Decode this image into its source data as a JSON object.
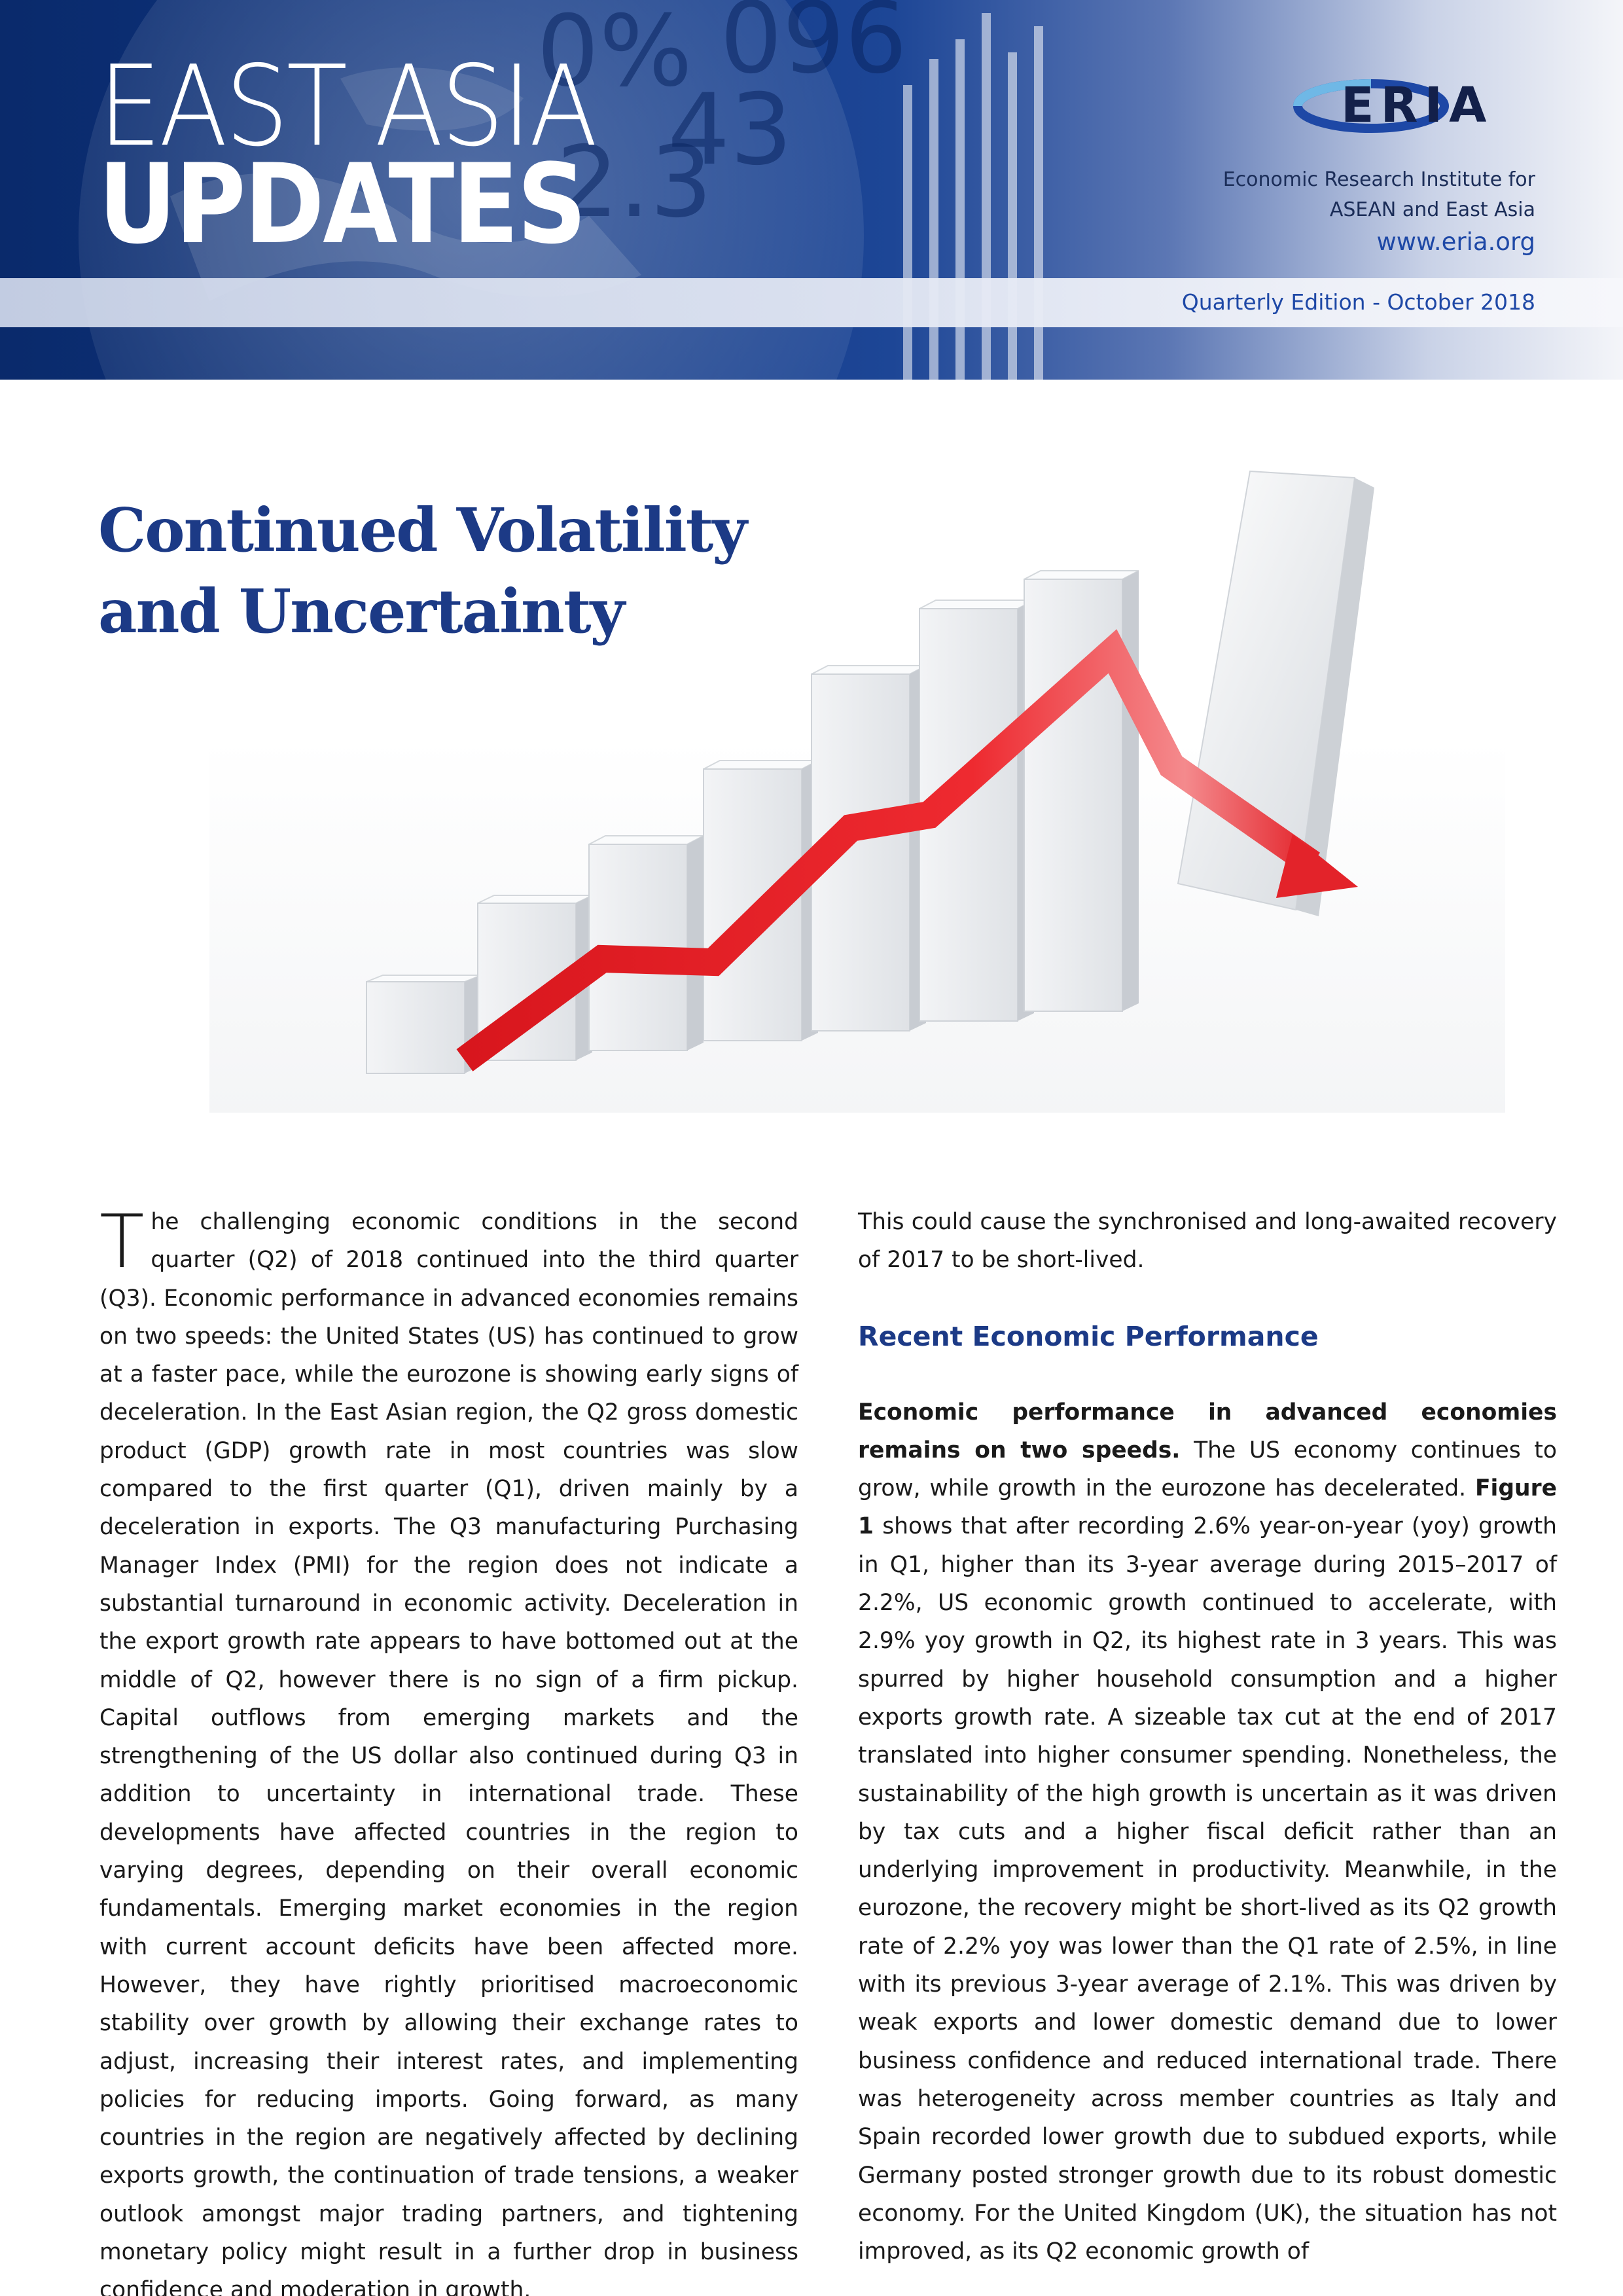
{
  "banner": {
    "title_line1": "EAST ASIA",
    "title_line2": "UPDATES",
    "logo_text": "ERIA",
    "org_name": "Economic Research Institute for ASEAN and East Asia",
    "url": "www.eria.org",
    "edition": "Quarterly Edition - October 2018"
  },
  "colors": {
    "banner_navy": "#0e3582",
    "headline_blue": "#1c3a86",
    "link_blue": "#1e48a6",
    "arrow_red": "#e3232a"
  },
  "headline": {
    "line1": "Continued Volatility",
    "line2": "and Uncertainty"
  },
  "hero": {
    "description_icon": "bar-chart-red-arrow-down-icon"
  },
  "article": {
    "dropcap": "T",
    "left_column": "he challenging economic conditions in the second quarter (Q2) of 2018 continued into the third quarter (Q3). Economic performance in advanced economies remains on two speeds: the United States (US) has continued to grow at a faster pace, while the eurozone is showing early signs of deceleration. In the East Asian region, the Q2 gross domestic product (GDP) growth rate in most countries was slow compared to the first quarter (Q1), driven mainly by a deceleration in exports. The Q3 manufacturing Purchasing Manager Index (PMI) for the region does not indicate a substantial turnaround in economic activity. Deceleration in the export growth rate appears to have bottomed out at the middle of Q2, however there is no sign of a firm pickup. Capital outflows from emerging markets and the strengthening of the US dollar also continued during Q3 in addition to uncertainty in international trade. These developments have affected countries in the region to varying degrees, depending on their overall economic fundamentals. Emerging market economies in the region with current account deficits have been affected more. However, they have rightly prioritised macroeconomic stability over growth by allowing their exchange rates to adjust, increasing their interest rates, and implementing policies for reducing imports. Going forward, as many countries in the region are negatively affected by declining exports growth, the continuation of trade tensions, a weaker outlook amongst major trading partners, and tightening monetary policy might result in a further drop in business confidence and moderation in growth.",
    "right_intro": "This could cause the synchronised and long-awaited recovery of 2017 to be short-lived.",
    "section_heading": "Recent Economic Performance",
    "para_lead_bold": "Economic performance in advanced economies remains on two speeds.",
    "para_part1": " The US economy continues to grow, while growth in the eurozone has decelerated. ",
    "para_figure_ref": "Figure 1",
    "para_part2": " shows that after recording 2.6% year-on-year (yoy) growth in Q1, higher than its 3-year average during 2015–2017 of 2.2%, US economic growth continued to accelerate, with 2.9% yoy growth in Q2, its highest rate in 3 years. This was spurred by higher household consumption and a higher exports growth rate. A sizeable tax cut at the end of 2017 translated into higher consumer spending. Nonetheless, the sustainability of the high growth is uncertain as it was driven by tax cuts and a higher fiscal deficit rather than an underlying improvement in productivity. Meanwhile, in the eurozone, the recovery might be short-lived as its Q2 growth rate of 2.2% yoy was lower than the Q1 rate of 2.5%, in line with its previous 3-year average of 2.1%. This was driven by weak exports and lower domestic demand due to lower business confidence and reduced international trade. There was heterogeneity across member countries as Italy and Spain recorded lower growth due to subdued exports, while Germany posted stronger growth due to its robust domestic economy. For the United Kingdom (UK), the situation has not improved, as its Q2 economic growth of"
  }
}
